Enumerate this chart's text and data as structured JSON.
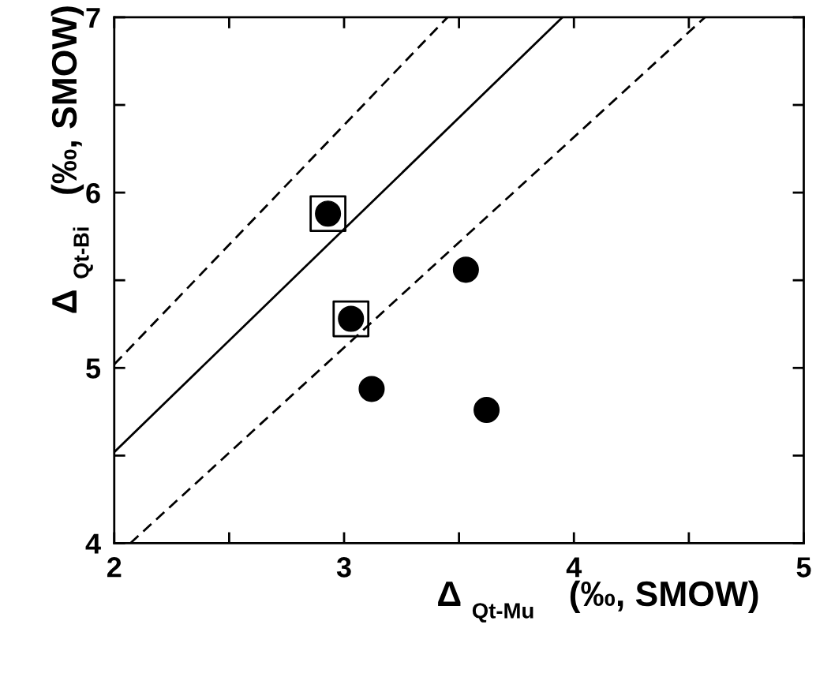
{
  "chart_data": {
    "type": "scatter",
    "xlabel": "Δ$_{Qt-Mu}$ (‰, SMOW)",
    "ylabel": "Δ$_{Qt-Bi}$ (‰, SMOW)",
    "xlim": [
      2,
      5
    ],
    "ylim": [
      4,
      7
    ],
    "xticks": [
      2,
      {
        "value": 2.5,
        "label": null
      },
      3,
      {
        "value": 3.5,
        "label": null
      },
      4,
      {
        "value": 4.5,
        "label": null
      },
      5
    ],
    "yticks": [
      4,
      {
        "value": 4.5,
        "label": null
      },
      5,
      {
        "value": 5.5,
        "label": null
      },
      6,
      {
        "value": 6.5,
        "label": null
      },
      7
    ],
    "grid": false,
    "legend": false,
    "series": [
      {
        "type": "line",
        "color": "#000000",
        "line_style": "solid",
        "marker": "none",
        "x": [
          2,
          3.95
        ],
        "values": [
          4.52,
          7
        ]
      },
      {
        "type": "line",
        "color": "#000000",
        "line_style": "dashed",
        "marker": "none",
        "x": [
          2,
          3.45
        ],
        "values": [
          5.02,
          7
        ]
      },
      {
        "type": "line",
        "color": "#000000",
        "line_style": "dashed",
        "marker": "none",
        "x": [
          2.07,
          4.57
        ],
        "values": [
          4,
          7
        ]
      },
      {
        "color": "#000000",
        "marker": "circle",
        "x": [
          2.93,
          3.03,
          3.53,
          3.12,
          3.62
        ],
        "values": [
          5.88,
          5.28,
          5.56,
          4.88,
          4.76
        ]
      },
      {
        "color": "#000000",
        "marker": "square",
        "x": [
          2.93,
          3.03
        ],
        "values": [
          5.88,
          5.28
        ]
      }
    ]
  }
}
